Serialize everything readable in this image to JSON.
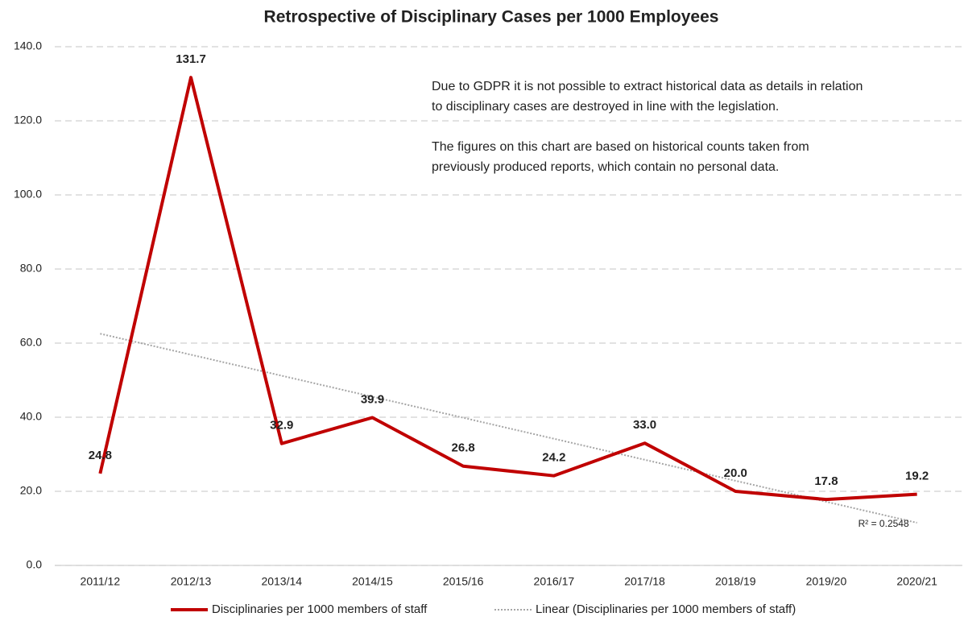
{
  "chart_data": {
    "type": "line",
    "title": "Retrospective of Disciplinary Cases per 1000 Employees",
    "categories": [
      "2011/12",
      "2012/13",
      "2013/14",
      "2014/15",
      "2015/16",
      "2016/17",
      "2017/18",
      "2018/19",
      "2019/20",
      "2020/21"
    ],
    "series": [
      {
        "name": "Disciplinaries per 1000 members of staff",
        "color": "#c00000",
        "values": [
          24.8,
          131.7,
          32.9,
          39.9,
          26.8,
          24.2,
          33.0,
          20.0,
          17.8,
          19.2
        ],
        "value_labels": [
          "24.8",
          "131.7",
          "32.9",
          "39.9",
          "26.8",
          "24.2",
          "33.0",
          "20.0",
          "17.8",
          "19.2"
        ]
      }
    ],
    "trendline": {
      "type": "linear",
      "name": "Linear (Disciplinaries per 1000 members of staff)",
      "label": "R² = 0.2548",
      "color": "#a6a6a6"
    },
    "ylim": [
      0,
      140
    ],
    "yticks": [
      {
        "value": 0,
        "label": "0.0"
      },
      {
        "value": 20,
        "label": "20.0"
      },
      {
        "value": 40,
        "label": "40.0"
      },
      {
        "value": 60,
        "label": "60.0"
      },
      {
        "value": 80,
        "label": "80.0"
      },
      {
        "value": 100,
        "label": "100.0"
      },
      {
        "value": 120,
        "label": "120.0"
      },
      {
        "value": 140,
        "label": "140.0"
      }
    ],
    "grid": true,
    "legend": "bottom",
    "annotations": [
      [
        "Due to GDPR it is not possible to extract historical data as details in relation",
        "to disciplinary cases are destroyed in line with the legislation."
      ],
      [
        "The figures on this chart are based on historical counts taken from",
        "previously produced reports, which contain no personal data."
      ]
    ]
  }
}
